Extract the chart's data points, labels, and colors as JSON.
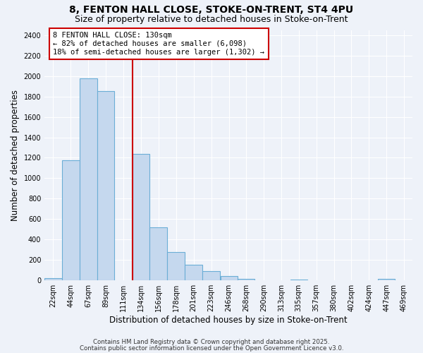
{
  "title_line1": "8, FENTON HALL CLOSE, STOKE-ON-TRENT, ST4 4PU",
  "title_line2": "Size of property relative to detached houses in Stoke-on-Trent",
  "xlabel": "Distribution of detached houses by size in Stoke-on-Trent",
  "ylabel": "Number of detached properties",
  "bar_labels": [
    "22sqm",
    "44sqm",
    "67sqm",
    "89sqm",
    "111sqm",
    "134sqm",
    "156sqm",
    "178sqm",
    "201sqm",
    "223sqm",
    "246sqm",
    "268sqm",
    "290sqm",
    "313sqm",
    "335sqm",
    "357sqm",
    "380sqm",
    "402sqm",
    "424sqm",
    "447sqm",
    "469sqm"
  ],
  "bar_values": [
    20,
    1175,
    1975,
    1850,
    0,
    1240,
    520,
    280,
    155,
    90,
    45,
    15,
    0,
    0,
    10,
    0,
    0,
    0,
    0,
    15,
    0
  ],
  "bin_edges": [
    22,
    44,
    67,
    89,
    111,
    134,
    156,
    178,
    201,
    223,
    246,
    268,
    290,
    313,
    335,
    357,
    380,
    402,
    424,
    447,
    469,
    491
  ],
  "bar_color": "#C5D8EE",
  "bar_edge_color": "#6BAED6",
  "annotation_text_line1": "8 FENTON HALL CLOSE: 130sqm",
  "annotation_text_line2": "← 82% of detached houses are smaller (6,098)",
  "annotation_text_line3": "18% of semi-detached houses are larger (1,302) →",
  "annotation_box_color": "#ffffff",
  "annotation_box_edge": "#cc0000",
  "vline_x": 134,
  "vline_color": "#cc0000",
  "ylim": [
    0,
    2450
  ],
  "yticks": [
    0,
    200,
    400,
    600,
    800,
    1000,
    1200,
    1400,
    1600,
    1800,
    2000,
    2200,
    2400
  ],
  "footer1": "Contains HM Land Registry data © Crown copyright and database right 2025.",
  "footer2": "Contains public sector information licensed under the Open Government Licence v3.0.",
  "background_color": "#EEF2F9",
  "grid_color": "#ffffff",
  "title_fontsize": 10,
  "subtitle_fontsize": 9,
  "axis_label_fontsize": 8.5,
  "tick_fontsize": 7,
  "annot_fontsize": 7.5
}
